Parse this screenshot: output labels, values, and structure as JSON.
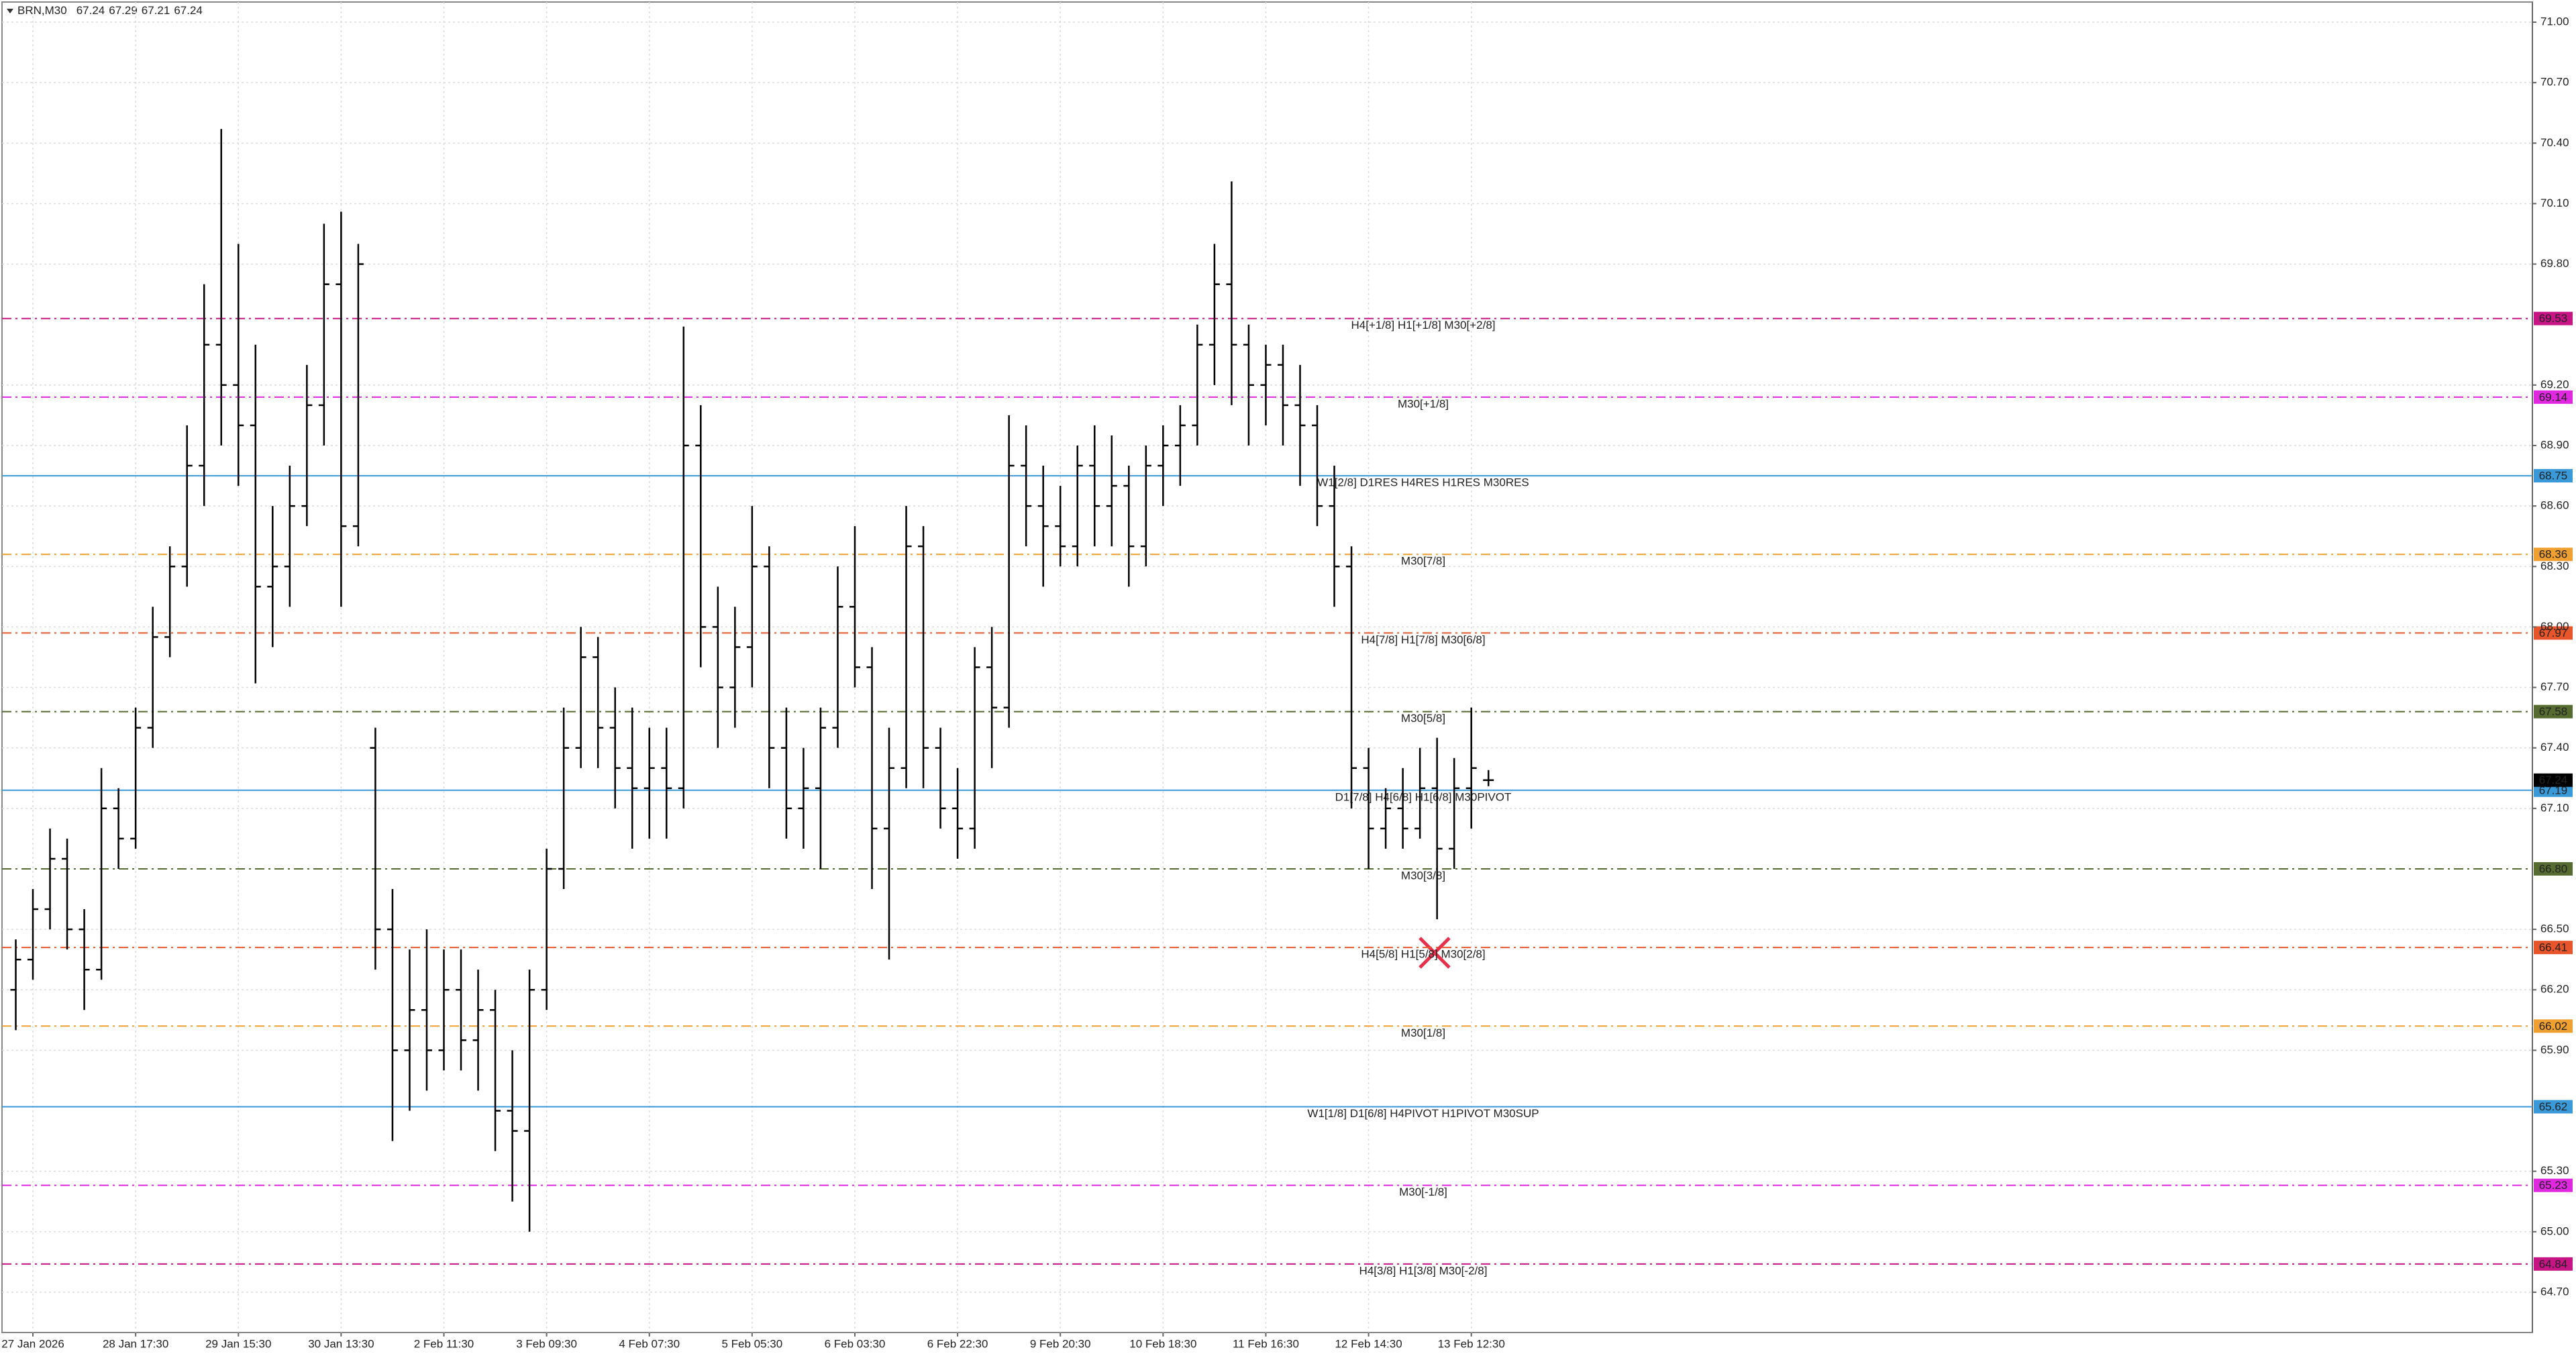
{
  "chart_data": {
    "type": "ohlc",
    "title": "BRN,M30",
    "categories": [
      null,
      "27 Jan 2026",
      null,
      null,
      null,
      null,
      null,
      "28 Jan 17:30",
      null,
      null,
      null,
      null,
      null,
      "29 Jan 15:30",
      null,
      null,
      null,
      null,
      null,
      "30 Jan 13:30",
      null,
      null,
      null,
      null,
      null,
      "2 Feb 11:30",
      null,
      null,
      null,
      null,
      null,
      "3 Feb 09:30",
      null,
      null,
      null,
      null,
      null,
      "4 Feb 07:30",
      null,
      null,
      null,
      null,
      null,
      "5 Feb 05:30",
      null,
      null,
      null,
      null,
      null,
      "6 Feb 03:30",
      null,
      null,
      null,
      null,
      null,
      "6 Feb 22:30",
      null,
      null,
      null,
      null,
      null,
      "9 Feb 20:30",
      null,
      null,
      null,
      null,
      null,
      "10 Feb 18:30",
      null,
      null,
      null,
      null,
      null,
      "11 Feb 16:30",
      null,
      null,
      null,
      null,
      null,
      "12 Feb 14:30",
      null,
      null,
      null,
      null,
      null,
      "13 Feb 12:30",
      null
    ],
    "open": [
      66.2,
      66.35,
      66.6,
      66.85,
      66.5,
      66.3,
      67.1,
      66.95,
      67.5,
      67.95,
      68.3,
      68.8,
      69.4,
      69.2,
      69.0,
      68.2,
      68.3,
      68.6,
      69.1,
      69.7,
      68.5,
      67.4,
      66.5,
      65.9,
      66.1,
      65.9,
      66.2,
      65.95,
      66.1,
      65.6,
      65.5,
      66.2,
      66.8,
      67.4,
      67.85,
      67.5,
      67.3,
      67.2,
      67.3,
      67.2,
      68.9,
      68.0,
      67.7,
      67.9,
      68.3,
      67.4,
      67.1,
      67.2,
      67.5,
      68.1,
      67.8,
      67.0,
      67.3,
      68.4,
      67.4,
      67.1,
      67.0,
      67.8,
      67.6,
      68.8,
      68.6,
      68.5,
      68.4,
      68.8,
      68.6,
      68.7,
      68.4,
      68.8,
      68.9,
      69.0,
      69.4,
      69.7,
      69.4,
      69.2,
      69.3,
      69.1,
      69.0,
      68.6,
      68.3,
      67.3,
      67.0,
      67.1,
      67.0,
      67.2,
      66.9,
      67.2,
      67.24
    ],
    "high": [
      66.45,
      66.7,
      67.0,
      66.95,
      66.6,
      67.3,
      67.2,
      67.6,
      68.1,
      68.4,
      69.0,
      69.7,
      70.47,
      69.9,
      69.4,
      68.6,
      68.8,
      69.3,
      70.0,
      70.06,
      69.9,
      67.5,
      66.7,
      66.4,
      66.5,
      66.4,
      66.4,
      66.3,
      66.2,
      65.9,
      66.3,
      66.9,
      67.6,
      68.0,
      67.95,
      67.7,
      67.6,
      67.5,
      67.5,
      69.49,
      69.1,
      68.2,
      68.1,
      68.6,
      68.4,
      67.6,
      67.4,
      67.6,
      68.3,
      68.5,
      67.9,
      67.5,
      68.6,
      68.5,
      67.5,
      67.3,
      67.9,
      68.0,
      69.05,
      69.0,
      68.8,
      68.7,
      68.9,
      69.0,
      68.95,
      68.8,
      68.9,
      69.0,
      69.1,
      69.5,
      69.9,
      70.21,
      69.5,
      69.4,
      69.4,
      69.3,
      69.1,
      68.8,
      68.4,
      67.4,
      67.2,
      67.3,
      67.4,
      67.45,
      67.35,
      67.6,
      67.29
    ],
    "low": [
      66.0,
      66.25,
      66.5,
      66.4,
      66.1,
      66.25,
      66.8,
      66.9,
      67.4,
      67.85,
      68.2,
      68.6,
      68.9,
      68.7,
      67.72,
      67.9,
      68.1,
      68.5,
      68.9,
      68.1,
      68.4,
      66.3,
      65.45,
      65.6,
      65.7,
      65.8,
      65.8,
      65.7,
      65.4,
      65.15,
      65.0,
      66.1,
      66.7,
      67.3,
      67.3,
      67.1,
      66.9,
      66.95,
      66.95,
      67.1,
      67.8,
      67.4,
      67.5,
      67.7,
      67.2,
      66.95,
      66.9,
      66.8,
      67.4,
      67.7,
      66.7,
      66.35,
      67.2,
      67.2,
      67.0,
      66.85,
      66.9,
      67.3,
      67.5,
      68.4,
      68.2,
      68.3,
      68.3,
      68.4,
      68.4,
      68.2,
      68.3,
      68.6,
      68.7,
      68.9,
      69.2,
      69.1,
      68.9,
      69.0,
      68.9,
      68.7,
      68.5,
      68.1,
      67.1,
      66.8,
      66.9,
      66.9,
      66.95,
      66.55,
      66.8,
      67.0,
      67.21
    ],
    "close": [
      66.35,
      66.6,
      66.85,
      66.5,
      66.3,
      67.1,
      66.95,
      67.5,
      67.95,
      68.3,
      68.8,
      69.4,
      69.2,
      69.0,
      68.2,
      68.3,
      68.6,
      69.1,
      69.7,
      68.5,
      69.8,
      66.5,
      65.9,
      66.1,
      65.9,
      66.2,
      65.95,
      66.1,
      65.6,
      65.5,
      66.2,
      66.8,
      67.4,
      67.85,
      67.5,
      67.3,
      67.2,
      67.3,
      67.2,
      68.9,
      68.0,
      67.7,
      67.9,
      68.3,
      67.4,
      67.1,
      67.2,
      67.5,
      68.1,
      67.8,
      67.0,
      67.3,
      68.4,
      67.4,
      67.1,
      67.0,
      67.8,
      67.6,
      68.8,
      68.6,
      68.5,
      68.4,
      68.8,
      68.6,
      68.7,
      68.4,
      68.8,
      68.9,
      69.0,
      69.4,
      69.7,
      69.4,
      69.2,
      69.3,
      69.1,
      69.0,
      68.6,
      68.3,
      67.3,
      67.0,
      67.1,
      67.0,
      67.2,
      66.9,
      67.2,
      67.3,
      67.24
    ],
    "color": "#000000",
    "ylim": [
      64.5,
      71.1
    ],
    "yticks": [
      {
        "value": 71,
        "label": "71.00"
      },
      {
        "value": 70.7,
        "label": "70.70"
      },
      {
        "value": 70.4,
        "label": "70.40"
      },
      {
        "value": 70.1,
        "label": "70.10"
      },
      {
        "value": 69.8,
        "label": "69.80"
      },
      {
        "value": 69.2,
        "label": "69.20"
      },
      {
        "value": 68.9,
        "label": "68.90"
      },
      {
        "value": 68.6,
        "label": "68.60"
      },
      {
        "value": 68.3,
        "label": "68.30"
      },
      {
        "value": 68,
        "label": "68.00"
      },
      {
        "value": 67.7,
        "label": "67.70"
      },
      {
        "value": 67.4,
        "label": "67.40"
      },
      {
        "value": 67.1,
        "label": "67.10"
      },
      {
        "value": 66.5,
        "label": "66.50"
      },
      {
        "value": 66.2,
        "label": "66.20"
      },
      {
        "value": 65.9,
        "label": "65.90"
      },
      {
        "value": 65.3,
        "label": "65.30"
      },
      {
        "value": 65,
        "label": "65.00"
      },
      {
        "value": 64.7,
        "label": "64.70"
      }
    ],
    "grid": true,
    "levels": {
      "names": [
        "H4[+1/8] H1[+1/8] M30[+2/8]",
        "M30[+1/8]",
        "W1[2/8] D1RES H4RES H1RES M30RES",
        "M30[7/8]",
        "H4[7/8] H1[7/8] M30[6/8]",
        "M30[5/8]",
        "D1[7/8] H4[6/8] H1[6/8] M30PIVOT",
        "M30[3/8]",
        "H4[5/8] H1[5/8] M30[2/8]",
        "M30[1/8]",
        "W1[1/8] D1[6/8] H4PIVOT H1PIVOT M30SUP",
        "M30[-1/8]",
        "H4[3/8] H1[3/8] M30[-2/8]"
      ],
      "values": [
        69.53,
        69.14,
        68.75,
        68.36,
        67.97,
        67.58,
        67.19,
        66.8,
        66.41,
        66.02,
        65.62,
        65.23,
        64.84
      ],
      "value_labels": [
        "69.53",
        "69.14",
        "68.75",
        "68.36",
        "67.97",
        "67.58",
        "67.19",
        "66.80",
        "66.41",
        "66.02",
        "65.62",
        "65.23",
        "64.84"
      ],
      "colors": [
        "#c71585",
        "#e028e0",
        "#3a9ad9",
        "#f0a030",
        "#e8552a",
        "#556b2f",
        "#3a9ad9",
        "#556b2f",
        "#e8552a",
        "#f0a030",
        "#3a9ad9",
        "#e028e0",
        "#c71585"
      ]
    }
  }
}
